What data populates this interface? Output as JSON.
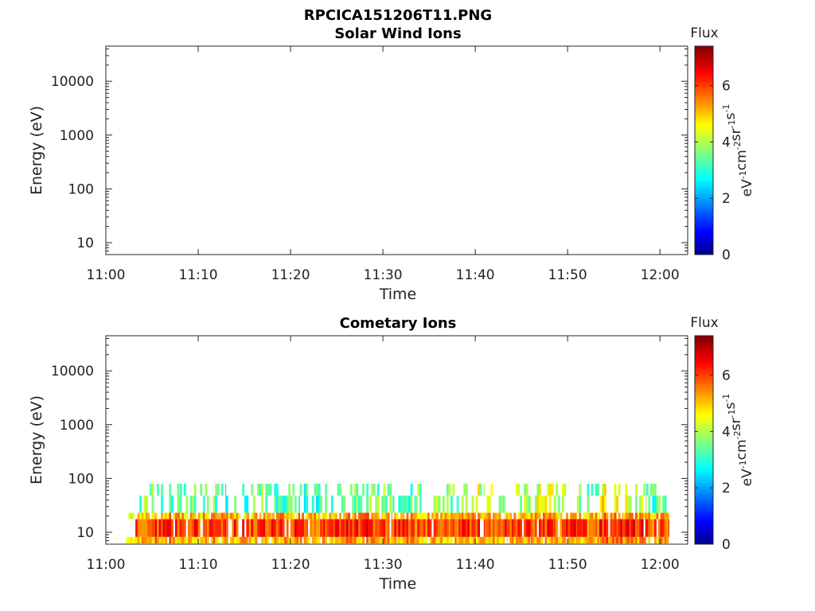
{
  "figure": {
    "title": "RPCICA151206T11.PNG"
  },
  "chart_data": [
    {
      "type": "heatmap",
      "title": "Solar Wind Ions",
      "xlabel": "Time",
      "ylabel": "Energy (eV)",
      "x_ticks": [
        "11:00",
        "11:10",
        "11:20",
        "11:30",
        "11:40",
        "11:50",
        "12:00"
      ],
      "x_range_minutes": [
        0,
        63
      ],
      "y_scale": "log",
      "y_ticks": [
        "10",
        "100",
        "1000",
        "10000"
      ],
      "y_tick_values": [
        10,
        100,
        1000,
        10000
      ],
      "y_range": [
        6,
        45000
      ],
      "colorbar": {
        "label": "Flux",
        "unit_parts": [
          {
            "text": "eV",
            "sup": "-1"
          },
          {
            "text": "cm",
            "sup": "-2"
          },
          {
            "text": "sr",
            "sup": "-1"
          },
          {
            "text": "s",
            "sup": "-1"
          }
        ],
        "ticks": [
          "0",
          "2",
          "4",
          "6"
        ],
        "tick_values": [
          0,
          2,
          4,
          6
        ],
        "range": [
          0,
          7.4
        ],
        "colormap": "jet"
      },
      "segments": []
    },
    {
      "type": "heatmap",
      "title": "Cometary Ions",
      "xlabel": "Time",
      "ylabel": "Energy (eV)",
      "x_ticks": [
        "11:00",
        "11:10",
        "11:20",
        "11:30",
        "11:40",
        "11:50",
        "12:00"
      ],
      "x_range_minutes": [
        0,
        63
      ],
      "y_scale": "log",
      "y_ticks": [
        "10",
        "100",
        "1000",
        "10000"
      ],
      "y_tick_values": [
        10,
        100,
        1000,
        10000
      ],
      "y_range": [
        6,
        45000
      ],
      "colorbar": {
        "label": "Flux",
        "unit_parts": [
          {
            "text": "eV",
            "sup": "-1"
          },
          {
            "text": "cm",
            "sup": "-2"
          },
          {
            "text": "sr",
            "sup": "-1"
          },
          {
            "text": "s",
            "sup": "-1"
          }
        ],
        "ticks": [
          "0",
          "2",
          "4",
          "6"
        ],
        "tick_values": [
          0,
          2,
          4,
          6
        ],
        "range": [
          0,
          7.4
        ],
        "colormap": "jet"
      },
      "segments": [
        {
          "t": [
            2.2,
            3.2
          ],
          "low_band": 4.3,
          "core": 0,
          "high_band": 0
        },
        {
          "t": [
            3.2,
            5.3
          ],
          "low_band": 5.0,
          "core": 5.9,
          "high_band": 3.6
        },
        {
          "t": [
            5.3,
            8.0
          ],
          "low_band": 5.3,
          "core": 6.1,
          "high_band": 3.4
        },
        {
          "t": [
            8.0,
            10.5
          ],
          "low_band": 5.0,
          "core": 5.9,
          "high_band": 3.5
        },
        {
          "t": [
            10.5,
            13.0
          ],
          "low_band": 5.3,
          "core": 6.0,
          "high_band": 3.3
        },
        {
          "t": [
            13.0,
            15.5
          ],
          "low_band": 5.2,
          "core": 6.1,
          "high_band": 3.2
        },
        {
          "t": [
            15.5,
            18.0
          ],
          "low_band": 5.0,
          "core": 5.9,
          "high_band": 3.6
        },
        {
          "t": [
            18.0,
            21.0
          ],
          "low_band": 5.3,
          "core": 6.1,
          "high_band": 3.4
        },
        {
          "t": [
            21.0,
            23.5
          ],
          "low_band": 5.1,
          "core": 5.9,
          "high_band": 3.2
        },
        {
          "t": [
            23.5,
            26.0
          ],
          "low_band": 5.2,
          "core": 6.0,
          "high_band": 3.4
        },
        {
          "t": [
            26.0,
            28.5
          ],
          "low_band": 5.4,
          "core": 6.2,
          "high_band": 3.7
        },
        {
          "t": [
            28.5,
            31.0
          ],
          "low_band": 5.2,
          "core": 6.1,
          "high_band": 3.6
        },
        {
          "t": [
            31.0,
            33.5
          ],
          "low_band": 5.3,
          "core": 6.0,
          "high_band": 3.4
        },
        {
          "t": [
            33.5,
            36.0
          ],
          "low_band": 5.1,
          "core": 5.9,
          "high_band": 3.9
        },
        {
          "t": [
            36.0,
            38.5
          ],
          "low_band": 5.0,
          "core": 5.8,
          "high_band": 3.7
        },
        {
          "t": [
            38.5,
            41.0
          ],
          "low_band": 5.3,
          "core": 6.0,
          "high_band": 4.3
        },
        {
          "t": [
            41.0,
            43.5
          ],
          "low_band": 5.2,
          "core": 6.0,
          "high_band": 4.2
        },
        {
          "t": [
            43.5,
            46.0
          ],
          "low_band": 5.0,
          "core": 5.9,
          "high_band": 3.9
        },
        {
          "t": [
            46.0,
            48.5
          ],
          "low_band": 5.3,
          "core": 6.1,
          "high_band": 4.3
        },
        {
          "t": [
            48.5,
            51.0
          ],
          "low_band": 5.3,
          "core": 6.0,
          "high_band": 4.2
        },
        {
          "t": [
            51.0,
            53.5
          ],
          "low_band": 5.0,
          "core": 5.8,
          "high_band": 3.7
        },
        {
          "t": [
            53.5,
            56.0
          ],
          "low_band": 5.6,
          "core": 6.4,
          "high_band": 4.6
        },
        {
          "t": [
            56.0,
            58.5
          ],
          "low_band": 5.4,
          "core": 6.2,
          "high_band": 4.3
        },
        {
          "t": [
            58.5,
            61.0
          ],
          "low_band": 5.1,
          "core": 5.9,
          "high_band": 3.4
        }
      ]
    }
  ]
}
